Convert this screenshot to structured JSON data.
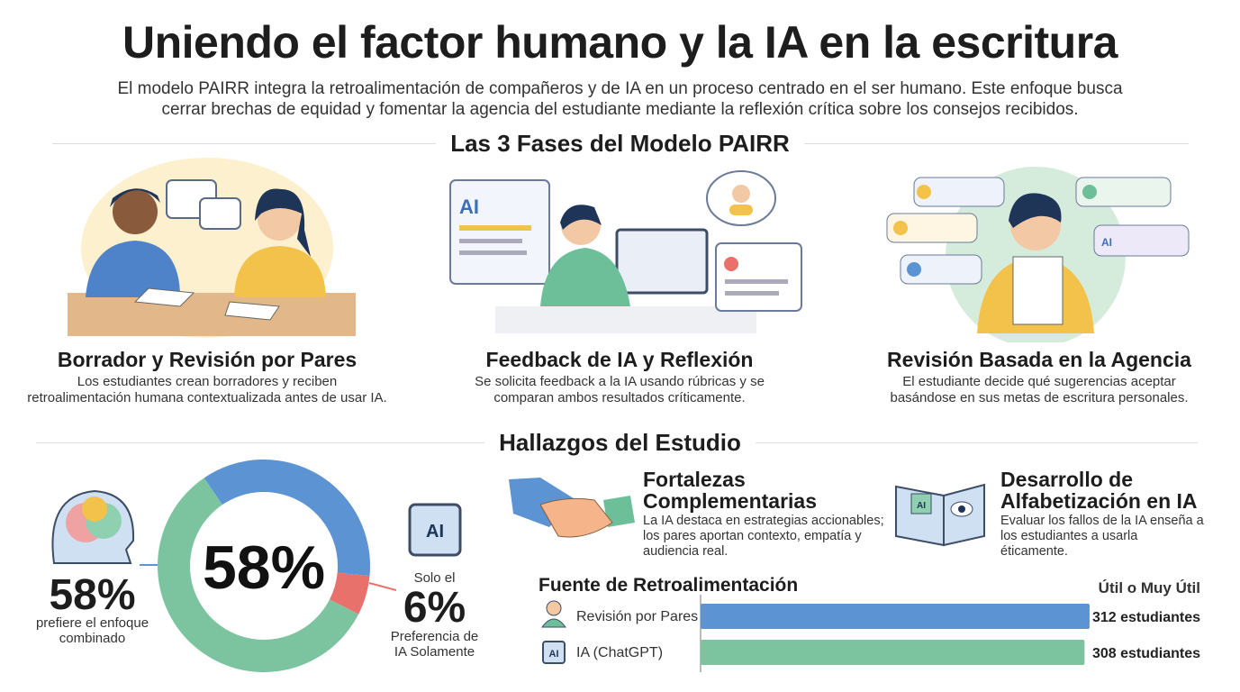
{
  "header": {
    "title": "Uniendo el factor humano y la IA en la escritura",
    "subtitle": "El modelo PAIRR integra la retroalimentación de compañeros y de IA en un proceso centrado en el ser humano. Este enfoque busca cerrar brechas de equidad y fomentar la agencia del estudiante mediante la reflexión crítica sobre los consejos recibidos."
  },
  "icon_labels": {
    "ai": "AI"
  },
  "phases": {
    "section_title": "Las 3 Fases del Modelo PAIRR",
    "items": [
      {
        "title": "Borrador y Revisión por Pares",
        "description": "Los estudiantes crean borradores y reciben retroalimentación humana contextualizada antes de usar IA."
      },
      {
        "title": "Feedback de IA y Reflexión",
        "description": "Se solicita feedback a la IA usando rúbricas y se comparan ambos resultados críticamente."
      },
      {
        "title": "Revisión Basada en la Agencia",
        "description": "El estudiante decide qué sugerencias aceptar basándose en sus metas de escritura personales."
      }
    ]
  },
  "findings": {
    "section_title": "Hallazgos del Estudio",
    "donut": {
      "type": "pie",
      "center_label": "58%",
      "segments": [
        {
          "value": 58,
          "color": "#7cc4a0"
        },
        {
          "value": 36,
          "color": "#5b93d3"
        },
        {
          "value": 6,
          "color": "#e8716b"
        }
      ]
    },
    "left_stat": {
      "value_text": "58%",
      "caption": "prefiere el enfoque combinado"
    },
    "right_stat": {
      "prefix": "Solo el",
      "value_text": "6%",
      "caption": "Preferencia de IA Solamente"
    },
    "cards": [
      {
        "title": "Fortalezas Complementarias",
        "description": "La IA destaca en estrategias accionables; los pares aportan contexto, empatía y audiencia real."
      },
      {
        "title": "Desarrollo de Alfabetización en IA",
        "description": "Evaluar los fallos de la IA enseña a los estudiantes a usarla éticamente."
      }
    ],
    "feedback_chart": {
      "type": "bar",
      "title": "Fuente de Retroalimentación",
      "column_header": "Útil o Muy Útil",
      "categories": [
        "Revisión por Pares",
        "IA (ChatGPT)"
      ],
      "values": [
        312,
        308
      ],
      "value_labels": [
        "312 estudiantes",
        "308 estudiantes"
      ],
      "colors": [
        "#5b93d3",
        "#7cc4a0"
      ],
      "xlim": [
        0,
        320
      ]
    }
  }
}
